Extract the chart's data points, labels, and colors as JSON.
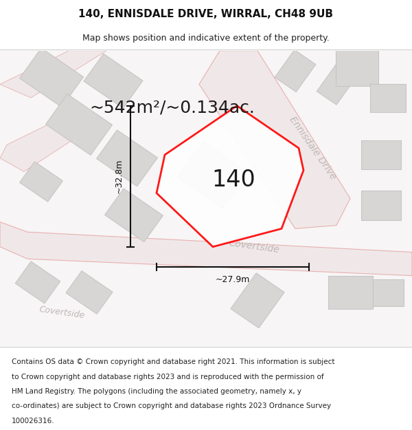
{
  "title": "140, ENNISDALE DRIVE, WIRRAL, CH48 9UB",
  "subtitle": "Map shows position and indicative extent of the property.",
  "footer_lines": [
    "Contains OS data © Crown copyright and database right 2021. This information is subject",
    "to Crown copyright and database rights 2023 and is reproduced with the permission of",
    "HM Land Registry. The polygons (including the associated geometry, namely x, y",
    "co-ordinates) are subject to Crown copyright and database rights 2023 Ordnance Survey",
    "100026316."
  ],
  "area_label": "~542m²/~0.134ac.",
  "width_label": "~27.9m",
  "height_label": "~32.8m",
  "plot_number": "140",
  "map_bg": "#f7f5f5",
  "road_fill": "#f0e8e8",
  "road_edge": "#e8b0b0",
  "building_fill": "#d8d5d5",
  "building_edge": "#c8c5c5",
  "plot_fill": "#ffffff",
  "plot_edge": "#ff0000",
  "dim_color": "#111111",
  "street_color": "#c0b8b8",
  "title_color": "#111111",
  "text_color": "#222222",
  "footer_color": "#222222",
  "title_fontsize": 11,
  "subtitle_fontsize": 9,
  "footer_fontsize": 7.5,
  "area_fontsize": 18,
  "plot_num_fontsize": 24,
  "dim_fontsize": 9,
  "street_fontsize": 10
}
